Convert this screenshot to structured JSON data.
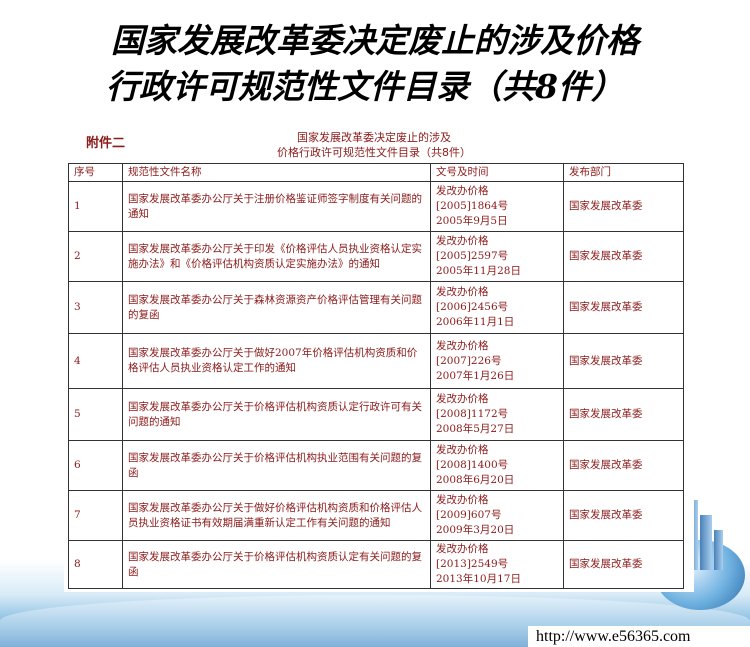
{
  "slide": {
    "title_line1": "国家发展改革委决定废止的涉及价格",
    "title_line2": "行政许可规范性文件目录（共8件）"
  },
  "document": {
    "attachment_label": "附件二",
    "title_line1": "国家发展改革委决定废止的涉及",
    "title_line2": "价格行政许可规范性文件目录（共8件）",
    "headers": [
      "序号",
      "规范性文件名称",
      "文号及时间",
      "发布部门"
    ],
    "rows": [
      {
        "no": "1",
        "name": "国家发展改革委办公厅关于注册价格鉴证师签字制度有关问题的通知",
        "doc": "发改办价格",
        "num": "[2005]1864号",
        "date": "2005年9月5日",
        "dept": "国家发展改革委"
      },
      {
        "no": "2",
        "name": "国家发展改革委办公厅关于印发《价格评估人员执业资格认定实施办法》和《价格评估机构资质认定实施办法》的通知",
        "doc": "发改办价格",
        "num": "[2005]2597号",
        "date": "2005年11月28日",
        "dept": "国家发展改革委"
      },
      {
        "no": "3",
        "name": "国家发展改革委办公厅关于森林资源资产价格评估管理有关问题的复函",
        "doc": "发改办价格",
        "num": "[2006]2456号",
        "date": "2006年11月1日",
        "dept": "国家发展改革委"
      },
      {
        "no": "4",
        "name": "国家发展改革委办公厅关于做好2007年价格评估机构资质和价格评估人员执业资格认定工作的通知",
        "doc": "发改办价格",
        "num": "[2007]226号",
        "date": "2007年1月26日",
        "dept": "国家发展改革委"
      },
      {
        "no": "5",
        "name": "国家发展改革委办公厅关于价格评估机构资质认定行政许可有关问题的通知",
        "doc": "发改办价格",
        "num": "[2008]1172号",
        "date": "2008年5月27日",
        "dept": "国家发展改革委"
      },
      {
        "no": "6",
        "name": "国家发展改革委办公厅关于价格评估机构执业范围有关问题的复函",
        "doc": "发改办价格",
        "num": "[2008]1400号",
        "date": "2008年6月20日",
        "dept": "国家发展改革委"
      },
      {
        "no": "7",
        "name": "国家发展改革委办公厅关于做好价格评估机构资质和价格评估人员执业资格证书有效期届满重新认定工作有关问题的通知",
        "doc": "发改办价格",
        "num": "[2009]607号",
        "date": "2009年3月20日",
        "dept": "国家发展改革委"
      },
      {
        "no": "8",
        "name": "国家发展改革委办公厅关于价格评估机构资质认定有关问题的复函",
        "doc": "发改办价格",
        "num": "[2013]2549号",
        "date": "2013年10月17日",
        "dept": "国家发展改革委"
      }
    ]
  },
  "footer": {
    "url": "http://www.e56365.com"
  },
  "colors": {
    "text_red": "#8b1a1a",
    "wave_blue": "#3d86c4"
  }
}
